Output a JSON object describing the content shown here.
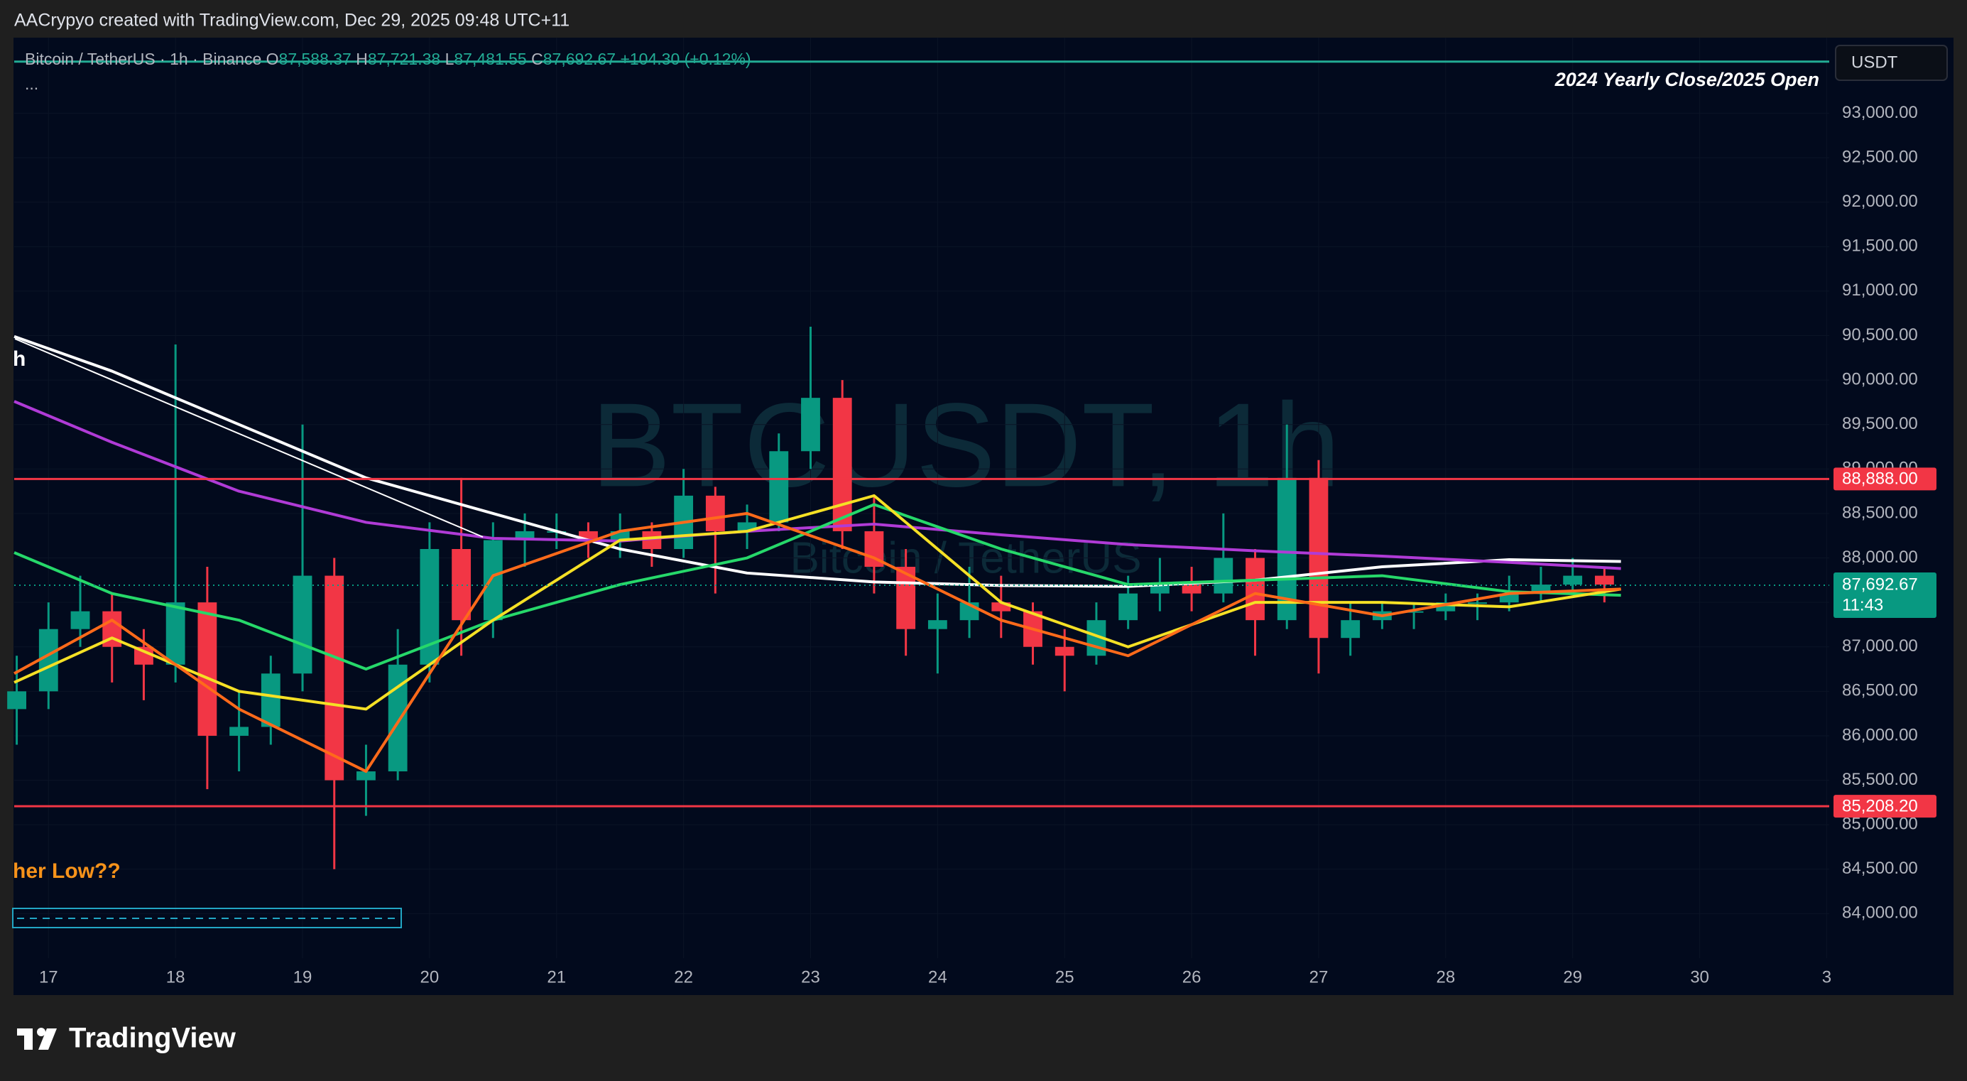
{
  "header": "AACrypyo created with TradingView.com, Dec 29, 2025 09:48 UTC+11",
  "legend": {
    "symbol": "Bitcoin / TetherUS · 1h · Binance",
    "open_label": "O",
    "open": "87,588.37",
    "high_label": "H",
    "high": "87,721.38",
    "low_label": "L",
    "low": "87,481.55",
    "close_label": "C",
    "close": "87,692.67",
    "change": "+104.30 (+0.12%)",
    "more": "..."
  },
  "currency_button": "USDT",
  "watermark": {
    "ticker": "BTCUSDT, 1h",
    "name": "Bitcoin / TetherUS"
  },
  "annotations": {
    "left_cut": "h",
    "low_note": "her Low??"
  },
  "footer": {
    "brand": "TradingView"
  },
  "chart_data": {
    "type": "candlestick",
    "xlim": [
      -0.27,
      14.02
    ],
    "ylim": [
      83500,
      93850
    ],
    "grid": true,
    "xticks": [
      {
        "value": 0,
        "label": "17"
      },
      {
        "value": 1,
        "label": "18"
      },
      {
        "value": 2,
        "label": "19"
      },
      {
        "value": 3,
        "label": "20"
      },
      {
        "value": 4,
        "label": "21"
      },
      {
        "value": 5,
        "label": "22"
      },
      {
        "value": 6,
        "label": "23"
      },
      {
        "value": 7,
        "label": "24"
      },
      {
        "value": 8,
        "label": "25"
      },
      {
        "value": 9,
        "label": "26"
      },
      {
        "value": 10,
        "label": "27"
      },
      {
        "value": 11,
        "label": "28"
      },
      {
        "value": 12,
        "label": "29"
      },
      {
        "value": 13,
        "label": "30"
      },
      {
        "value": 14,
        "label": "3"
      }
    ],
    "yticks": [
      {
        "value": 84000,
        "label": "84,000.00"
      },
      {
        "value": 84500,
        "label": "84,500.00"
      },
      {
        "value": 85000,
        "label": "85,000.00"
      },
      {
        "value": 85500,
        "label": "85,500.00"
      },
      {
        "value": 86000,
        "label": "86,000.00"
      },
      {
        "value": 86500,
        "label": "86,500.00"
      },
      {
        "value": 87000,
        "label": "87,000.00"
      },
      {
        "value": 87500,
        "label": "87,500.00"
      },
      {
        "value": 88000,
        "label": "88,000.00"
      },
      {
        "value": 88500,
        "label": "88,500.00"
      },
      {
        "value": 89000,
        "label": "89,000.00"
      },
      {
        "value": 89500,
        "label": "89,500.00"
      },
      {
        "value": 90000,
        "label": "90,000.00"
      },
      {
        "value": 90500,
        "label": "90,500.00"
      },
      {
        "value": 91000,
        "label": "91,000.00"
      },
      {
        "value": 91500,
        "label": "91,500.00"
      },
      {
        "value": 92000,
        "label": "92,000.00"
      },
      {
        "value": 92500,
        "label": "92,500.00"
      },
      {
        "value": 93000,
        "label": "93,000.00"
      }
    ],
    "up_color": "#089981",
    "down_color": "#f23645",
    "candles": {
      "x": [
        -0.25,
        0,
        0.25,
        0.5,
        0.75,
        1,
        1.25,
        1.5,
        1.75,
        2,
        2.25,
        2.5,
        2.75,
        3,
        3.25,
        3.5,
        3.75,
        4,
        4.25,
        4.5,
        4.75,
        5,
        5.25,
        5.5,
        5.75,
        6,
        6.25,
        6.5,
        6.75,
        7,
        7.25,
        7.5,
        7.75,
        8,
        8.25,
        8.5,
        8.75,
        9,
        9.25,
        9.5,
        9.75,
        10,
        10.25,
        10.5,
        10.75,
        11,
        11.25,
        11.5,
        11.75,
        12,
        12.25
      ],
      "open": [
        86300,
        86500,
        87200,
        87400,
        87000,
        86800,
        87500,
        86000,
        86100,
        86700,
        87800,
        85500,
        85600,
        86800,
        88100,
        87300,
        88200,
        88300,
        88300,
        88200,
        88300,
        88100,
        88700,
        88300,
        88400,
        89200,
        89800,
        88300,
        87900,
        87200,
        87300,
        87500,
        87400,
        87000,
        86900,
        87300,
        87600,
        87700,
        87600,
        88000,
        87300,
        88900,
        87100,
        87300,
        87400,
        87400,
        87500,
        87500,
        87600,
        87700,
        87800
      ],
      "high": [
        86900,
        87500,
        87800,
        87600,
        87200,
        90400,
        87900,
        86500,
        86900,
        89500,
        88000,
        85900,
        87200,
        88400,
        88900,
        88400,
        88500,
        88500,
        88400,
        88500,
        88400,
        89000,
        88800,
        88600,
        89400,
        90600,
        90000,
        88700,
        88100,
        87600,
        87900,
        87800,
        87500,
        87200,
        87500,
        87800,
        88000,
        87900,
        88500,
        88100,
        89500,
        89100,
        87500,
        87500,
        87500,
        87600,
        87600,
        87800,
        87900,
        88000,
        87900
      ],
      "low": [
        85900,
        86300,
        87000,
        86600,
        86400,
        86600,
        85400,
        85600,
        85900,
        86500,
        84500,
        85100,
        85500,
        86600,
        86900,
        87100,
        87900,
        88100,
        88000,
        88000,
        87900,
        88000,
        87600,
        88100,
        88300,
        89000,
        88100,
        87600,
        86900,
        86700,
        87100,
        87100,
        86800,
        86500,
        86800,
        87200,
        87400,
        87400,
        87500,
        86900,
        87200,
        86700,
        86900,
        87200,
        87200,
        87300,
        87300,
        87400,
        87500,
        87600,
        87500
      ],
      "close": [
        86500,
        87200,
        87400,
        87000,
        86800,
        87500,
        86000,
        86100,
        86700,
        87800,
        85500,
        85600,
        86800,
        88100,
        87300,
        88200,
        88300,
        88300,
        88200,
        88300,
        88100,
        88700,
        88300,
        88400,
        89200,
        89800,
        88300,
        87900,
        87200,
        87300,
        87500,
        87400,
        87000,
        86900,
        87300,
        87600,
        87700,
        87600,
        88000,
        87300,
        88900,
        87100,
        87300,
        87400,
        87400,
        87500,
        87500,
        87600,
        87700,
        87800,
        87700
      ]
    },
    "ma_x": [
      -0.27,
      0.5,
      1.5,
      2.5,
      3.5,
      4.5,
      5.5,
      6.5,
      7.5,
      8.5,
      9.5,
      10.5,
      11.5,
      12.38
    ],
    "series": [
      {
        "color": "#ffffff",
        "values": [
          90490,
          90100,
          89500,
          88900,
          88500,
          88100,
          87830,
          87730,
          87690,
          87680,
          87750,
          87900,
          87980,
          87960
        ]
      },
      {
        "color": "#b03bd6",
        "values": [
          89760,
          89300,
          88750,
          88400,
          88220,
          88190,
          88300,
          88380,
          88260,
          88150,
          88080,
          88020,
          87950,
          87880
        ]
      },
      {
        "color": "#26d86a",
        "values": [
          88060,
          87600,
          87300,
          86750,
          87300,
          87700,
          88000,
          88600,
          88100,
          87700,
          87750,
          87800,
          87620,
          87580
        ]
      },
      {
        "color": "#f5e025",
        "values": [
          86600,
          87100,
          86500,
          86300,
          87300,
          88200,
          88300,
          88700,
          87500,
          87000,
          87500,
          87500,
          87450,
          87650
        ]
      },
      {
        "color": "#ff6a1a",
        "values": [
          86700,
          87300,
          86300,
          85600,
          87800,
          88300,
          88500,
          88000,
          87300,
          86900,
          87600,
          87350,
          87600,
          87650
        ]
      }
    ],
    "horizontal_lines": [
      {
        "value": 88888,
        "label": "88,888.00",
        "color": "#f23645"
      },
      {
        "value": 85208.2,
        "label": "85,208.20",
        "color": "#f23645"
      }
    ],
    "last_price": {
      "value": 87692.67,
      "label": "87,692.67",
      "countdown": "11:43",
      "color": "#089981"
    },
    "yearly_open_line": {
      "value": 93580,
      "label": "2024 Yearly Close/2025 Open",
      "color": "#22ab94"
    }
  }
}
